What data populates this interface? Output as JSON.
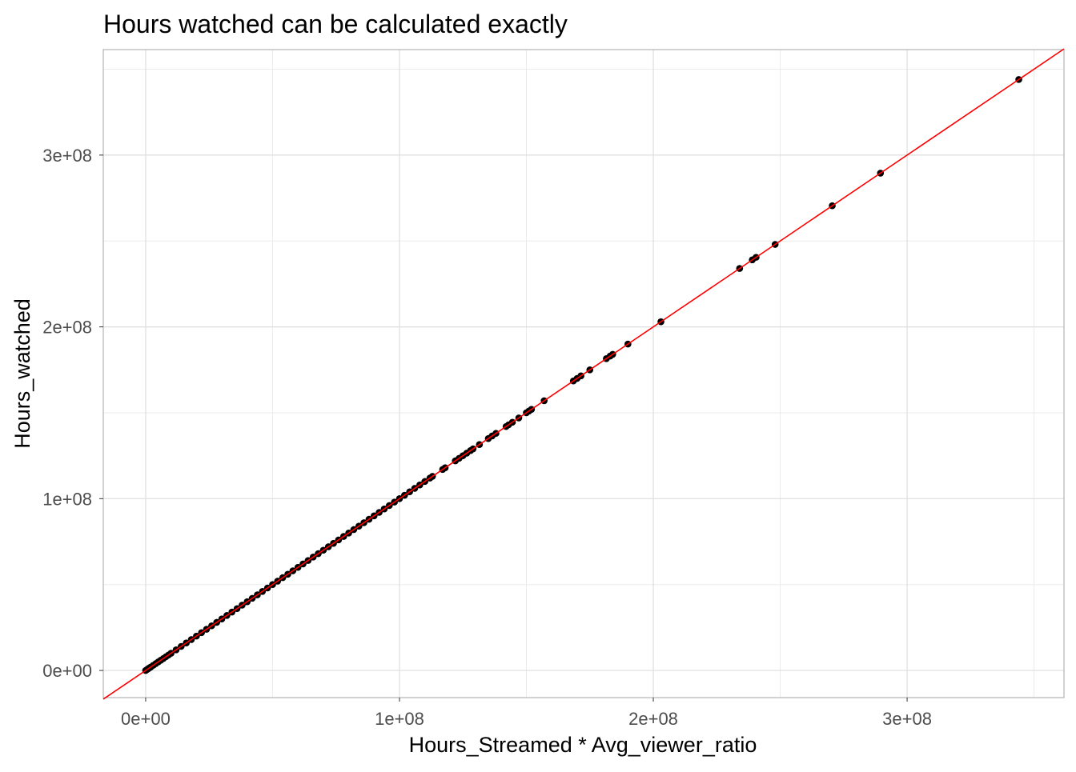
{
  "chart_data": {
    "type": "scatter",
    "title": "Hours watched can be calculated exactly",
    "xlabel": "Hours_Streamed * Avg_viewer_ratio",
    "ylabel": "Hours_watched",
    "xlim": [
      -16700000,
      361800000
    ],
    "ylim": [
      -15800000,
      361400000
    ],
    "xticks": [
      0,
      100000000,
      200000000,
      300000000
    ],
    "xtick_labels": [
      "0e+00",
      "1e+08",
      "2e+08",
      "3e+08"
    ],
    "yticks": [
      0,
      100000000,
      200000000,
      300000000
    ],
    "ytick_labels": [
      "0e+00",
      "1e+08",
      "2e+08",
      "3e+08"
    ],
    "grid": true,
    "reference_line": {
      "slope": 1,
      "intercept": 0,
      "color": "#ff0000"
    },
    "point_color": "#000000",
    "points_x": [
      0,
      500000,
      1000000,
      1500000,
      2000000,
      3000000,
      4000000,
      5000000,
      6000000,
      7000000,
      8000000,
      9000000,
      10000000,
      12000000,
      14000000,
      16000000,
      18000000,
      20000000,
      22000000,
      24000000,
      26000000,
      28000000,
      30000000,
      32000000,
      34000000,
      36000000,
      38000000,
      40000000,
      42000000,
      44000000,
      46000000,
      48000000,
      50000000,
      52000000,
      54000000,
      56000000,
      58000000,
      60000000,
      62000000,
      64000000,
      66000000,
      68000000,
      70000000,
      72000000,
      74000000,
      76000000,
      78000000,
      80000000,
      82000000,
      84000000,
      86000000,
      88000000,
      90000000,
      92000000,
      94000000,
      96000000,
      98000000,
      100000000,
      102000000,
      104000000,
      106000000,
      108000000,
      110000000,
      112000000,
      113000000,
      117000000,
      118000000,
      122000000,
      123500000,
      125000000,
      126500000,
      128000000,
      129000000,
      131500000,
      135000000,
      136500000,
      138000000,
      142000000,
      143000000,
      144500000,
      147000000,
      150000000,
      151000000,
      152000000,
      157000000,
      168500000,
      170000000,
      171500000,
      175000000,
      181500000,
      183000000,
      184000000,
      190000000,
      203000000,
      234000000,
      239000000,
      240500000,
      248000000,
      270500000,
      289500000,
      344000000
    ]
  }
}
